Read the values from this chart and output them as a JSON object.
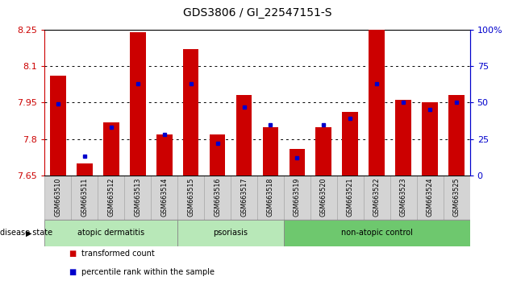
{
  "title": "GDS3806 / GI_22547151-S",
  "samples": [
    "GSM663510",
    "GSM663511",
    "GSM663512",
    "GSM663513",
    "GSM663514",
    "GSM663515",
    "GSM663516",
    "GSM663517",
    "GSM663518",
    "GSM663519",
    "GSM663520",
    "GSM663521",
    "GSM663522",
    "GSM663523",
    "GSM663524",
    "GSM663525"
  ],
  "transformed_count": [
    8.06,
    7.7,
    7.87,
    8.24,
    7.82,
    8.17,
    7.82,
    7.98,
    7.85,
    7.76,
    7.85,
    7.91,
    8.25,
    7.96,
    7.95,
    7.98
  ],
  "percentile_rank": [
    49,
    13,
    33,
    63,
    28,
    63,
    22,
    47,
    35,
    12,
    35,
    39,
    63,
    50,
    45,
    50
  ],
  "ymin": 7.65,
  "ymax": 8.25,
  "yticks": [
    7.65,
    7.8,
    7.95,
    8.1,
    8.25
  ],
  "ytick_labels": [
    "7.65",
    "7.8",
    "7.95",
    "8.1",
    "8.25"
  ],
  "right_yticks": [
    0,
    25,
    50,
    75,
    100
  ],
  "right_ytick_labels": [
    "0",
    "25",
    "50",
    "75",
    "100%"
  ],
  "bar_color": "#cc0000",
  "dot_color": "#0000cc",
  "groups": [
    {
      "label": "atopic dermatitis",
      "start": 0,
      "end": 5
    },
    {
      "label": "psoriasis",
      "start": 5,
      "end": 9
    },
    {
      "label": "non-atopic control",
      "start": 9,
      "end": 16
    }
  ],
  "group_colors": [
    "#b8e8b8",
    "#b8e8b8",
    "#6ec86e"
  ],
  "disease_state_label": "disease state",
  "legend_items": [
    {
      "color": "#cc0000",
      "label": "transformed count"
    },
    {
      "color": "#0000cc",
      "label": "percentile rank within the sample"
    }
  ],
  "tick_color_left": "#cc0000",
  "tick_color_right": "#0000cc",
  "grid_yticks": [
    7.8,
    7.95,
    8.1
  ]
}
